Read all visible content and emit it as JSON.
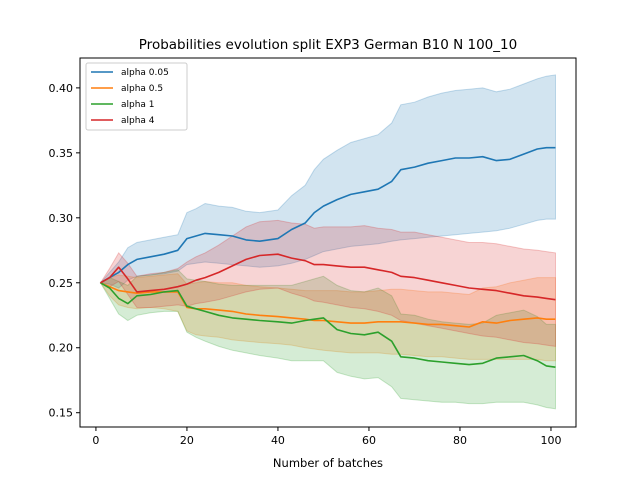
{
  "chart_data": {
    "type": "line",
    "title": "Probabilities evolution split EXP3 German B10 N 100_10",
    "xlabel": "Number of batches",
    "ylabel": "",
    "xlim": [
      -3.5,
      105.5
    ],
    "ylim": [
      0.139,
      0.423
    ],
    "xticks": [
      0,
      20,
      40,
      60,
      80,
      100
    ],
    "yticks": [
      0.15,
      0.2,
      0.25,
      0.3,
      0.35,
      0.4
    ],
    "ytick_labels": [
      "0.15",
      "0.20",
      "0.25",
      "0.30",
      "0.35",
      "0.40"
    ],
    "grid": false,
    "legend": "top-left",
    "band_opacity": 0.2,
    "series": [
      {
        "name": "alpha 0.05",
        "color": "#1f77b4",
        "x": [
          1,
          3,
          5,
          7,
          9,
          12,
          15,
          18,
          20,
          22,
          24,
          27,
          30,
          33,
          36,
          40,
          43,
          46,
          48,
          50,
          53,
          56,
          59,
          62,
          65,
          67,
          70,
          73,
          76,
          79,
          82,
          85,
          88,
          91,
          94,
          97,
          99,
          101
        ],
        "y": [
          0.25,
          0.254,
          0.258,
          0.264,
          0.268,
          0.27,
          0.272,
          0.275,
          0.284,
          0.286,
          0.288,
          0.287,
          0.286,
          0.283,
          0.282,
          0.284,
          0.291,
          0.296,
          0.304,
          0.309,
          0.314,
          0.318,
          0.32,
          0.322,
          0.328,
          0.337,
          0.339,
          0.342,
          0.344,
          0.346,
          0.346,
          0.347,
          0.344,
          0.345,
          0.349,
          0.353,
          0.354,
          0.354
        ],
        "lower": [
          0.25,
          0.249,
          0.246,
          0.252,
          0.255,
          0.256,
          0.257,
          0.259,
          0.264,
          0.265,
          0.266,
          0.265,
          0.264,
          0.263,
          0.262,
          0.263,
          0.265,
          0.268,
          0.271,
          0.274,
          0.276,
          0.278,
          0.279,
          0.28,
          0.282,
          0.283,
          0.284,
          0.285,
          0.286,
          0.287,
          0.288,
          0.289,
          0.29,
          0.292,
          0.295,
          0.298,
          0.299,
          0.299
        ],
        "upper": [
          0.25,
          0.258,
          0.266,
          0.277,
          0.281,
          0.283,
          0.285,
          0.287,
          0.304,
          0.307,
          0.311,
          0.309,
          0.308,
          0.305,
          0.304,
          0.306,
          0.317,
          0.325,
          0.337,
          0.345,
          0.352,
          0.358,
          0.361,
          0.364,
          0.373,
          0.387,
          0.389,
          0.393,
          0.396,
          0.398,
          0.399,
          0.4,
          0.397,
          0.399,
          0.403,
          0.407,
          0.409,
          0.41
        ]
      },
      {
        "name": "alpha 0.5",
        "color": "#ff7f0e",
        "x": [
          1,
          3,
          5,
          7,
          9,
          12,
          15,
          18,
          20,
          22,
          24,
          27,
          30,
          33,
          36,
          40,
          43,
          46,
          48,
          50,
          53,
          56,
          59,
          62,
          65,
          67,
          70,
          73,
          76,
          79,
          82,
          85,
          88,
          91,
          94,
          97,
          99,
          101
        ],
        "y": [
          0.25,
          0.247,
          0.244,
          0.243,
          0.242,
          0.243,
          0.243,
          0.243,
          0.231,
          0.23,
          0.23,
          0.229,
          0.228,
          0.226,
          0.225,
          0.224,
          0.223,
          0.222,
          0.221,
          0.221,
          0.22,
          0.219,
          0.219,
          0.22,
          0.22,
          0.22,
          0.219,
          0.218,
          0.218,
          0.217,
          0.216,
          0.22,
          0.219,
          0.221,
          0.222,
          0.223,
          0.222,
          0.222
        ],
        "lower": [
          0.25,
          0.24,
          0.233,
          0.231,
          0.23,
          0.231,
          0.23,
          0.228,
          0.213,
          0.21,
          0.209,
          0.208,
          0.206,
          0.205,
          0.204,
          0.203,
          0.202,
          0.2,
          0.199,
          0.198,
          0.197,
          0.196,
          0.196,
          0.196,
          0.195,
          0.195,
          0.194,
          0.193,
          0.193,
          0.192,
          0.191,
          0.191,
          0.191,
          0.191,
          0.191,
          0.191,
          0.19,
          0.19
        ],
        "upper": [
          0.25,
          0.254,
          0.256,
          0.255,
          0.254,
          0.255,
          0.256,
          0.257,
          0.249,
          0.25,
          0.251,
          0.25,
          0.25,
          0.248,
          0.247,
          0.246,
          0.245,
          0.244,
          0.244,
          0.244,
          0.244,
          0.243,
          0.243,
          0.244,
          0.245,
          0.245,
          0.244,
          0.243,
          0.243,
          0.242,
          0.241,
          0.246,
          0.247,
          0.25,
          0.252,
          0.254,
          0.254,
          0.254
        ]
      },
      {
        "name": "alpha 1",
        "color": "#2ca02c",
        "x": [
          1,
          3,
          5,
          7,
          9,
          12,
          15,
          18,
          20,
          22,
          24,
          27,
          30,
          33,
          36,
          40,
          43,
          46,
          48,
          50,
          53,
          56,
          59,
          62,
          65,
          67,
          70,
          73,
          76,
          79,
          82,
          85,
          88,
          91,
          94,
          97,
          99,
          101
        ],
        "y": [
          0.25,
          0.246,
          0.238,
          0.234,
          0.24,
          0.241,
          0.243,
          0.244,
          0.232,
          0.23,
          0.228,
          0.225,
          0.223,
          0.222,
          0.221,
          0.22,
          0.219,
          0.221,
          0.222,
          0.223,
          0.214,
          0.211,
          0.21,
          0.212,
          0.205,
          0.193,
          0.192,
          0.19,
          0.189,
          0.188,
          0.187,
          0.188,
          0.192,
          0.193,
          0.194,
          0.19,
          0.186,
          0.185
        ],
        "lower": [
          0.25,
          0.238,
          0.226,
          0.221,
          0.225,
          0.227,
          0.228,
          0.228,
          0.212,
          0.208,
          0.205,
          0.201,
          0.198,
          0.196,
          0.194,
          0.192,
          0.19,
          0.19,
          0.19,
          0.19,
          0.181,
          0.178,
          0.176,
          0.177,
          0.17,
          0.161,
          0.16,
          0.159,
          0.158,
          0.158,
          0.157,
          0.157,
          0.158,
          0.158,
          0.158,
          0.156,
          0.154,
          0.153
        ],
        "upper": [
          0.25,
          0.254,
          0.251,
          0.248,
          0.255,
          0.256,
          0.258,
          0.26,
          0.253,
          0.252,
          0.251,
          0.249,
          0.248,
          0.248,
          0.248,
          0.248,
          0.248,
          0.251,
          0.253,
          0.255,
          0.248,
          0.244,
          0.243,
          0.246,
          0.24,
          0.226,
          0.225,
          0.222,
          0.22,
          0.219,
          0.218,
          0.219,
          0.225,
          0.227,
          0.229,
          0.224,
          0.218,
          0.218
        ]
      },
      {
        "name": "alpha 4",
        "color": "#d62728",
        "x": [
          1,
          3,
          5,
          7,
          9,
          12,
          15,
          18,
          20,
          22,
          24,
          27,
          30,
          33,
          36,
          40,
          43,
          46,
          48,
          50,
          53,
          56,
          59,
          62,
          65,
          67,
          70,
          73,
          76,
          79,
          82,
          85,
          88,
          91,
          94,
          97,
          99,
          101
        ],
        "y": [
          0.25,
          0.254,
          0.262,
          0.253,
          0.243,
          0.244,
          0.245,
          0.247,
          0.249,
          0.252,
          0.254,
          0.258,
          0.263,
          0.268,
          0.271,
          0.272,
          0.269,
          0.267,
          0.264,
          0.264,
          0.263,
          0.262,
          0.262,
          0.26,
          0.258,
          0.255,
          0.254,
          0.252,
          0.25,
          0.248,
          0.246,
          0.245,
          0.244,
          0.242,
          0.24,
          0.239,
          0.238,
          0.237
        ],
        "lower": [
          0.25,
          0.247,
          0.251,
          0.241,
          0.231,
          0.231,
          0.232,
          0.233,
          0.232,
          0.234,
          0.235,
          0.237,
          0.24,
          0.243,
          0.245,
          0.246,
          0.242,
          0.239,
          0.236,
          0.235,
          0.233,
          0.231,
          0.23,
          0.228,
          0.225,
          0.221,
          0.219,
          0.217,
          0.215,
          0.213,
          0.211,
          0.209,
          0.208,
          0.206,
          0.204,
          0.203,
          0.202,
          0.201
        ],
        "upper": [
          0.25,
          0.261,
          0.273,
          0.265,
          0.255,
          0.257,
          0.258,
          0.261,
          0.266,
          0.27,
          0.273,
          0.279,
          0.286,
          0.293,
          0.297,
          0.298,
          0.296,
          0.295,
          0.292,
          0.293,
          0.293,
          0.293,
          0.294,
          0.292,
          0.291,
          0.289,
          0.289,
          0.287,
          0.285,
          0.283,
          0.281,
          0.281,
          0.28,
          0.278,
          0.276,
          0.275,
          0.274,
          0.273
        ]
      }
    ]
  }
}
